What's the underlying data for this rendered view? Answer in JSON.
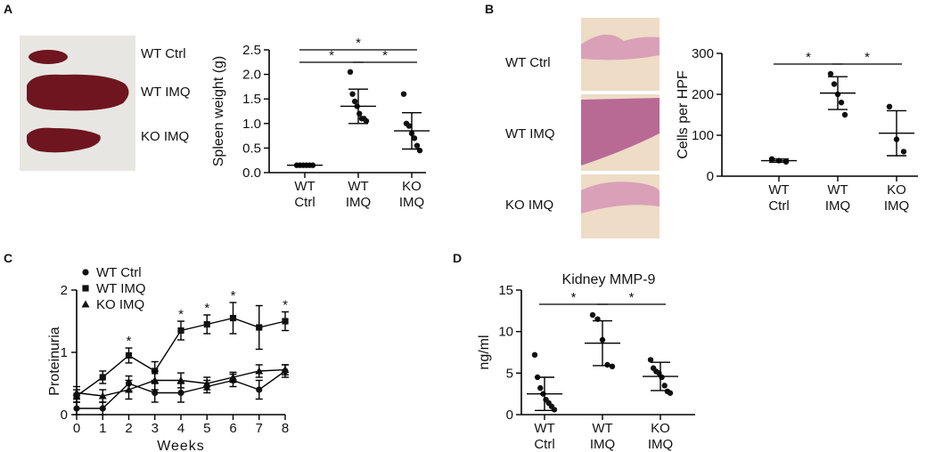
{
  "panel_labels": {
    "a": "A",
    "b": "B",
    "c": "C",
    "d": "D"
  },
  "photo_labels_a": [
    "WT Ctrl",
    "WT IMQ",
    "KO IMQ"
  ],
  "photo_labels_b": [
    "WT Ctrl",
    "WT IMQ",
    "KO IMQ"
  ],
  "colors": {
    "spleen": "#6e1520",
    "spleen_dark": "#4a0a12",
    "histo_bg": "#eedcc6",
    "histo_tissue": "#d9a0b8",
    "histo_dark": "#b86a95",
    "photo_bg": "#e8e6e2"
  },
  "chart_data": [
    {
      "id": "A",
      "type": "scatter",
      "ylabel": "Spleen weight (g)",
      "xlabel": "",
      "categories": [
        [
          "WT",
          "Ctrl"
        ],
        [
          "WT",
          "IMQ"
        ],
        [
          "KO",
          "IMQ"
        ]
      ],
      "ylim": [
        0,
        2.5
      ],
      "yticks": [
        0.0,
        0.5,
        1.0,
        1.5,
        2.0,
        2.5
      ],
      "ytick_labels": [
        "0.0",
        "0.5",
        "1.0",
        "1.5",
        "2.0",
        "2.5"
      ],
      "groups": [
        {
          "points": [
            0.15,
            0.15,
            0.15,
            0.15,
            0.15,
            0.15
          ],
          "mean": 0.15,
          "sd": 0.01
        },
        {
          "points": [
            2.05,
            1.6,
            1.45,
            1.35,
            1.2,
            1.1,
            1.1,
            1.05
          ],
          "mean": 1.35,
          "sd": 0.35
        },
        {
          "points": [
            1.6,
            1.0,
            0.95,
            0.8,
            0.7,
            0.55,
            0.45
          ],
          "mean": 0.85,
          "sd": 0.37
        }
      ],
      "significance": [
        {
          "from": 0,
          "to": 2,
          "label": "*"
        },
        {
          "from": 0,
          "to": 1,
          "label": "*"
        },
        {
          "from": 1,
          "to": 2,
          "label": "*"
        }
      ]
    },
    {
      "id": "B",
      "type": "scatter",
      "ylabel": "Cells per HPF",
      "xlabel": "",
      "categories": [
        [
          "WT",
          "Ctrl"
        ],
        [
          "WT",
          "IMQ"
        ],
        [
          "KO",
          "IMQ"
        ]
      ],
      "ylim": [
        0,
        300
      ],
      "yticks": [
        0,
        100,
        200,
        300
      ],
      "ytick_labels": [
        "0",
        "100",
        "200",
        "300"
      ],
      "groups": [
        {
          "points": [
            42,
            38,
            35
          ],
          "mean": 38,
          "sd": 4
        },
        {
          "points": [
            250,
            225,
            200,
            180,
            150
          ],
          "mean": 203,
          "sd": 40
        },
        {
          "points": [
            170,
            90,
            60
          ],
          "mean": 105,
          "sd": 55
        }
      ],
      "significance": [
        {
          "from": 0,
          "to": 1,
          "label": "*"
        },
        {
          "from": 1,
          "to": 2,
          "label": "*"
        }
      ]
    },
    {
      "id": "C",
      "type": "line",
      "ylabel": "Proteinuria",
      "xlabel": "Weeks",
      "x": [
        0,
        1,
        2,
        3,
        4,
        5,
        6,
        7,
        8
      ],
      "ylim": [
        0,
        2
      ],
      "yticks": [
        0,
        1,
        2
      ],
      "ytick_labels": [
        "0",
        "1",
        "2"
      ],
      "xticks": [
        0,
        1,
        2,
        3,
        4,
        5,
        6,
        7,
        8
      ],
      "xtick_labels": [
        "0",
        "1",
        "2",
        "3",
        "4",
        "5",
        "6",
        "7",
        "8"
      ],
      "series": [
        {
          "name": "WT Ctrl",
          "marker": "circle",
          "values": [
            0.1,
            0.1,
            0.5,
            0.35,
            0.35,
            0.45,
            0.55,
            0.4,
            0.7
          ],
          "err": [
            0.1,
            0.1,
            0.12,
            0.15,
            0.15,
            0.1,
            0.1,
            0.15,
            0.1
          ]
        },
        {
          "name": "WT IMQ",
          "marker": "square",
          "values": [
            0.3,
            0.6,
            0.95,
            0.7,
            1.35,
            1.45,
            1.55,
            1.4,
            1.5
          ],
          "err": [
            0.1,
            0.1,
            0.12,
            0.15,
            0.15,
            0.15,
            0.25,
            0.35,
            0.15
          ]
        },
        {
          "name": "KO IMQ",
          "marker": "triangle",
          "values": [
            0.35,
            0.3,
            0.4,
            0.55,
            0.55,
            0.5,
            0.6,
            0.7,
            0.72
          ],
          "err": [
            0.1,
            0.1,
            0.15,
            0.15,
            0.12,
            0.1,
            0.08,
            0.1,
            0.08
          ]
        }
      ],
      "annotations": [
        {
          "x": 2,
          "label": "*"
        },
        {
          "x": 4,
          "label": "*"
        },
        {
          "x": 5,
          "label": "*"
        },
        {
          "x": 6,
          "label": "*"
        },
        {
          "x": 8,
          "label": "*"
        }
      ]
    },
    {
      "id": "D",
      "type": "scatter",
      "title": "Kidney MMP-9",
      "ylabel": "ng/ml",
      "xlabel": "",
      "categories": [
        [
          "WT",
          "Ctrl"
        ],
        [
          "WT",
          "IMQ"
        ],
        [
          "KO",
          "IMQ"
        ]
      ],
      "ylim": [
        0,
        15
      ],
      "yticks": [
        0,
        5,
        10,
        15
      ],
      "ytick_labels": [
        "0",
        "5",
        "10",
        "15"
      ],
      "groups": [
        {
          "points": [
            7.2,
            4.5,
            3.2,
            2.5,
            1.8,
            1.4,
            1.0,
            0.6
          ],
          "mean": 2.5,
          "sd": 2.0
        },
        {
          "points": [
            12.0,
            11.5,
            9.0,
            6.0,
            5.8
          ],
          "mean": 8.6,
          "sd": 2.7
        },
        {
          "points": [
            6.6,
            5.6,
            5.2,
            5.0,
            4.5,
            3.5,
            2.8,
            2.6
          ],
          "mean": 4.6,
          "sd": 1.7
        }
      ],
      "significance": [
        {
          "from": 0,
          "to": 1,
          "label": "*"
        },
        {
          "from": 1,
          "to": 2,
          "label": "*"
        }
      ]
    }
  ]
}
